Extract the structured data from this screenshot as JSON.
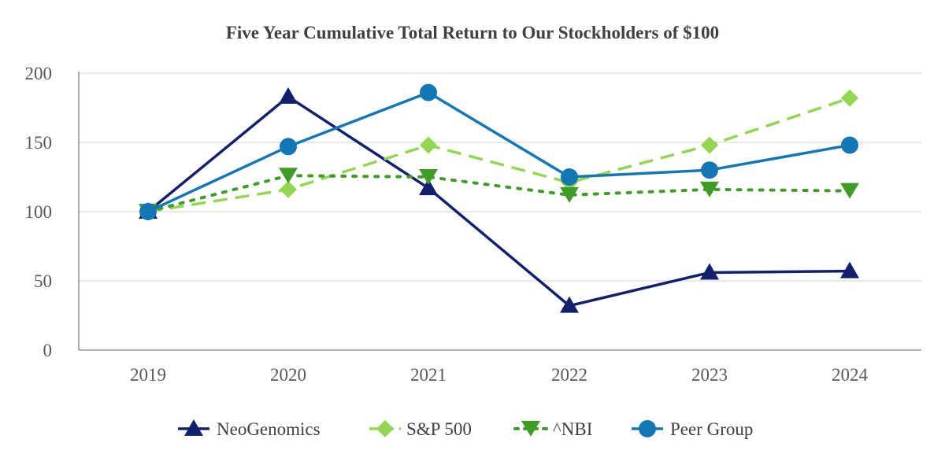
{
  "chart_data": {
    "type": "line",
    "title": "Five Year Cumulative Total Return to Our Stockholders of $100",
    "xlabel": "",
    "ylabel": "",
    "categories": [
      "2019",
      "2020",
      "2021",
      "2022",
      "2023",
      "2024"
    ],
    "ylim": [
      0,
      200
    ],
    "yticks": [
      0,
      50,
      100,
      150,
      200
    ],
    "grid": true,
    "legend_position": "bottom",
    "series": [
      {
        "name": "NeoGenomics",
        "values": [
          100,
          183,
          117,
          32,
          56,
          57
        ],
        "color": "#13206e",
        "line_style": "solid",
        "marker": "triangle-up"
      },
      {
        "name": "S&P 500",
        "values": [
          100,
          116,
          148,
          121,
          148,
          182
        ],
        "color": "#93d651",
        "line_style": "dashed",
        "marker": "diamond"
      },
      {
        "name": "^NBI",
        "values": [
          100,
          126,
          125,
          112,
          116,
          115
        ],
        "color": "#3f9d27",
        "line_style": "dotted",
        "marker": "triangle-down"
      },
      {
        "name": "Peer Group",
        "values": [
          100,
          147,
          186,
          125,
          130,
          148
        ],
        "color": "#1477b5",
        "line_style": "solid",
        "marker": "circle"
      }
    ]
  }
}
